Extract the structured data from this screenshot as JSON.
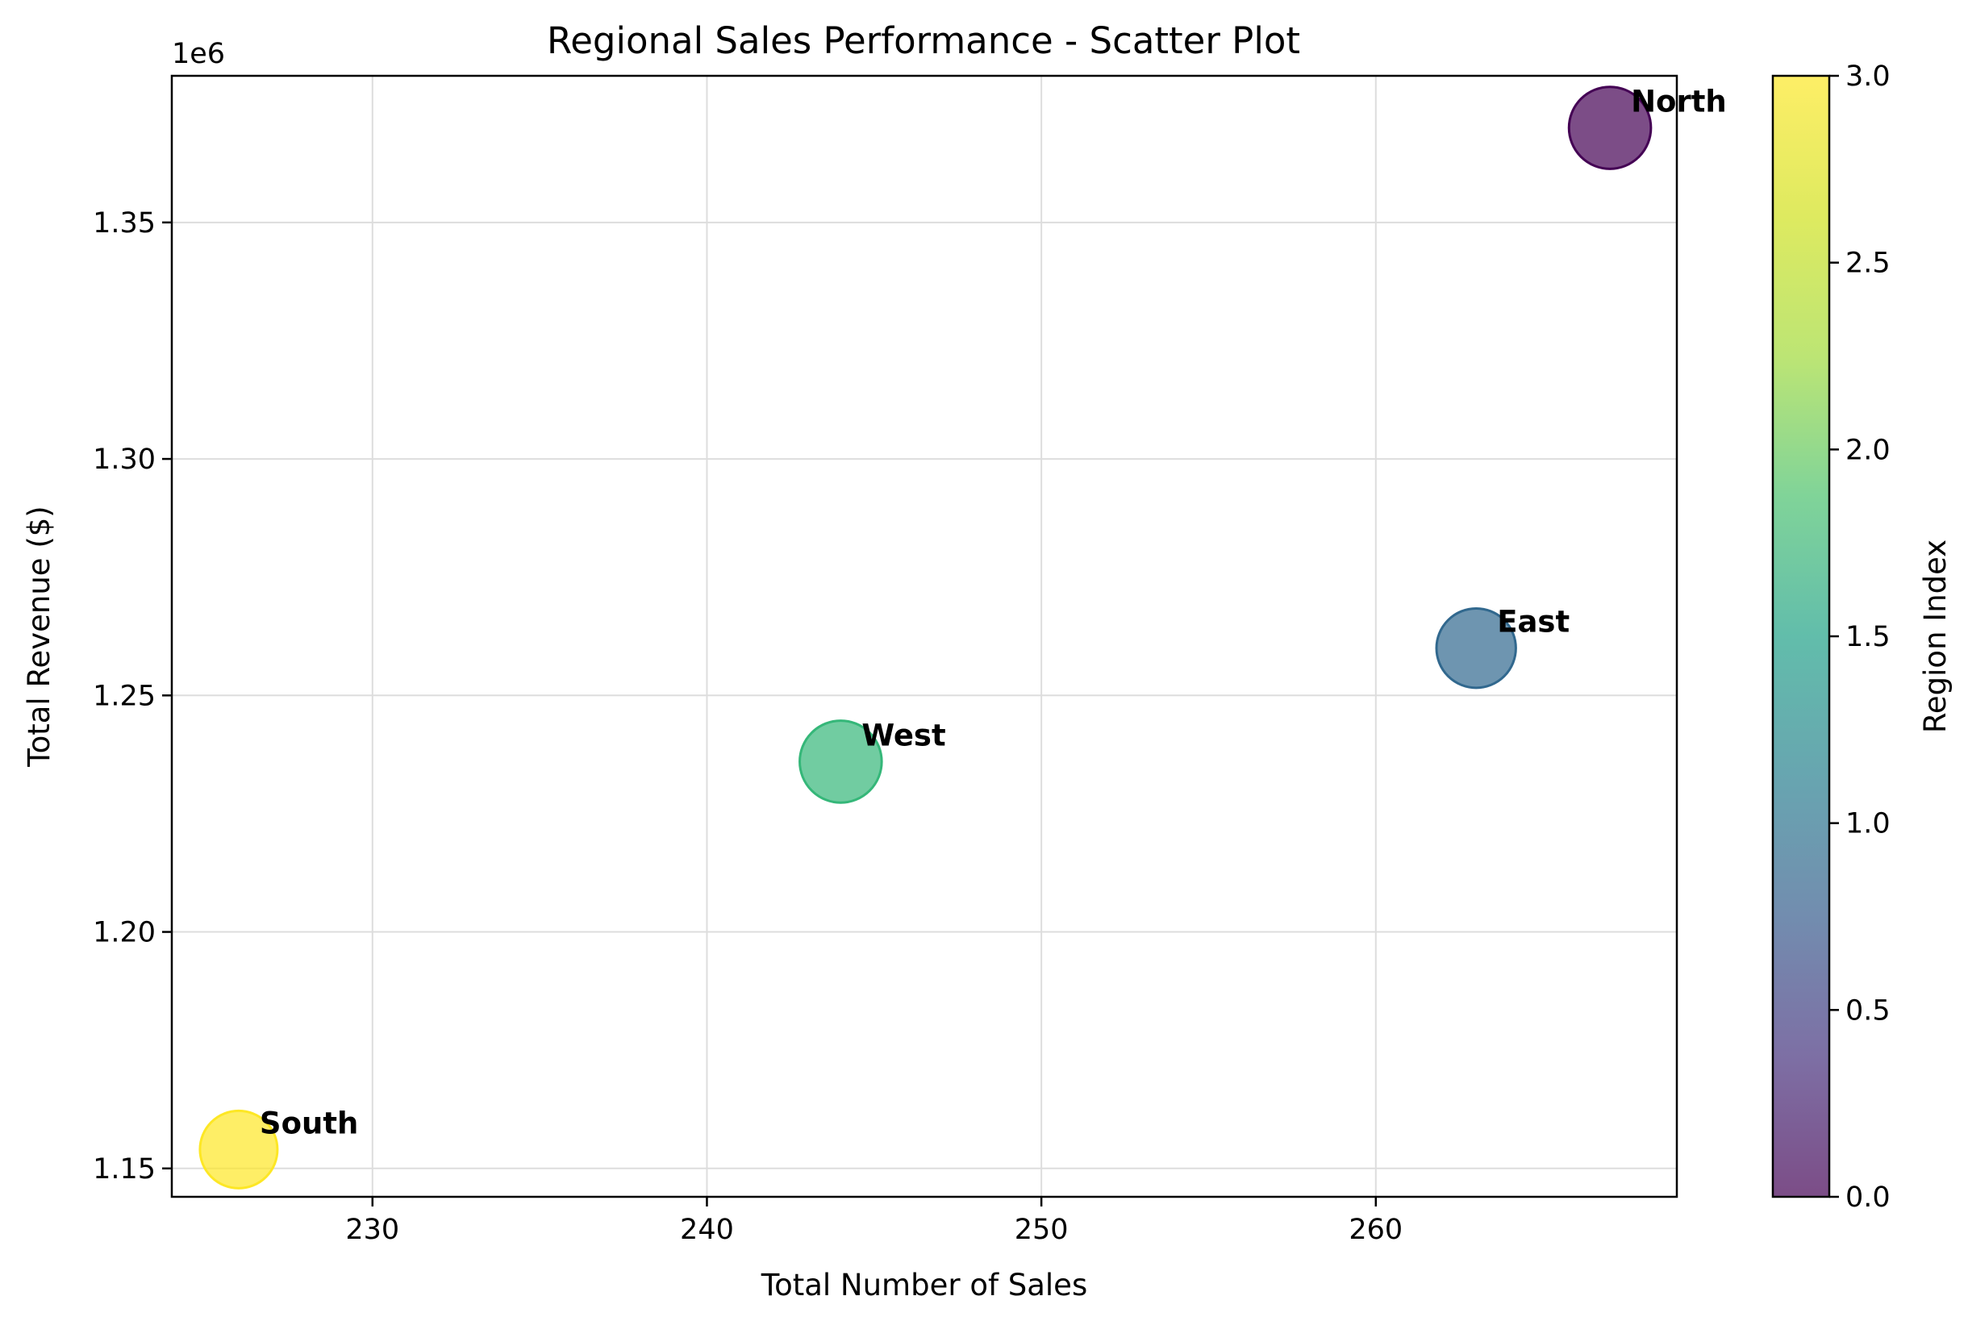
{
  "chart_data": {
    "type": "scatter",
    "title": "Regional Sales Performance - Scatter Plot",
    "xlabel": "Total Number of Sales",
    "ylabel": "Total Revenue ($)",
    "y_offset_label": "1e6",
    "xlim": [
      224,
      269
    ],
    "ylim": [
      1.144,
      1.381
    ],
    "x_ticks": [
      "230",
      "240",
      "250",
      "260"
    ],
    "x_tick_values": [
      230,
      240,
      250,
      260
    ],
    "y_ticks": [
      "1.15",
      "1.20",
      "1.25",
      "1.30",
      "1.35"
    ],
    "y_tick_values": [
      1.15,
      1.2,
      1.25,
      1.3,
      1.35
    ],
    "grid": true,
    "points": [
      {
        "label": "North",
        "x": 267,
        "y": 1.37,
        "color_value": 0,
        "color": "#440154",
        "size": 1.12
      },
      {
        "label": "East",
        "x": 263,
        "y": 1.26,
        "color_value": 1,
        "color": "#31688e",
        "size": 1.05
      },
      {
        "label": "West",
        "x": 244,
        "y": 1.236,
        "color_value": 2,
        "color": "#35b779",
        "size": 1.12
      },
      {
        "label": "South",
        "x": 226,
        "y": 1.154,
        "color_value": 3,
        "color": "#fde725",
        "size": 1.0
      }
    ],
    "colorbar": {
      "label": "Region Index",
      "colormap": "viridis",
      "range": [
        0,
        3
      ],
      "ticks": [
        "0.0",
        "0.5",
        "1.0",
        "1.5",
        "2.0",
        "2.5",
        "3.0"
      ],
      "tick_values": [
        0,
        0.5,
        1.0,
        1.5,
        2.0,
        2.5,
        3.0
      ]
    }
  }
}
